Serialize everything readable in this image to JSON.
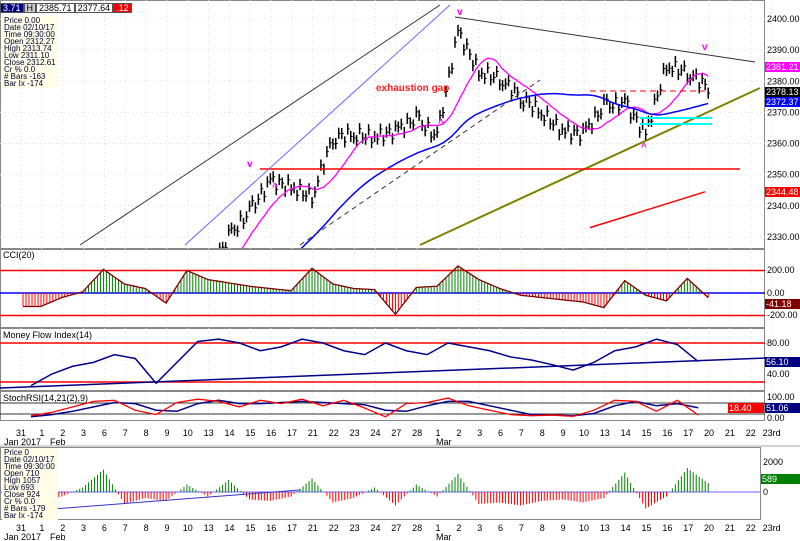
{
  "header": {
    "box1": "3.71",
    "h_label": "H",
    "high": "2385.71",
    "last": "2377.64",
    "change": ".12"
  },
  "info_price": {
    "rows": [
      "Price  0.00",
      "Date  02/10/17",
      "Time  09:30:00",
      "Open  2312.27",
      "High  2313.74",
      "Low  2311.10",
      "Close  2312.61",
      "Cr %  0.0",
      "# Bars -163",
      "Bar Ix -174"
    ]
  },
  "info_volume": {
    "rows": [
      "Price  0",
      "Date  02/10/17",
      "Time  09:30:00",
      "Open  710",
      "High  1057",
      "Low  693",
      "Close  924",
      "Cr %  0.0",
      "# Bars -179",
      "Bar Ix -174"
    ]
  },
  "tags": {
    "ma_fast": "2381.21",
    "close": "2378.13",
    "ma_slow": "2372.37",
    "ma_red": "2344.48",
    "cci": "-41.18",
    "mfi": "56.10",
    "stoch_d": "51.06",
    "stoch_k": "18.40",
    "volume": "589"
  },
  "colors": {
    "ma_fast": "#ff00ff",
    "ma_slow": "#0000ff",
    "ma_red": "#ff0000",
    "up": "#008000",
    "down": "#ff0000",
    "trend": "#808000",
    "cyan": "#00ffff"
  },
  "chart_data": [
    {
      "type": "bar",
      "title": "",
      "panel": "price",
      "y_ticks": [
        "2400.00",
        "2390.00",
        "2380.00",
        "2370.00",
        "2360.00",
        "2350.00",
        "2340.00",
        "2330.00"
      ],
      "ylim": [
        2328,
        2405
      ],
      "dates": [
        "31",
        "1",
        "2",
        "3",
        "6",
        "7",
        "8",
        "9",
        "10",
        "13",
        "14",
        "15",
        "16",
        "17",
        "21",
        "22",
        "23",
        "24",
        "27",
        "28",
        "1",
        "2",
        "3",
        "6",
        "7",
        "8",
        "9",
        "10",
        "13",
        "14",
        "15",
        "16",
        "17"
      ],
      "closes": [
        2270,
        2275,
        2278,
        2295,
        2292,
        2294,
        2298,
        2308,
        2318,
        2330,
        2338,
        2348,
        2346,
        2343,
        2362,
        2363,
        2362,
        2364,
        2368,
        2362,
        2396,
        2383,
        2381,
        2375,
        2370,
        2364,
        2363,
        2372,
        2373,
        2363,
        2385,
        2383,
        2378
      ],
      "annotations": [
        {
          "text": "exhaustion gap"
        },
        {
          "text": "v"
        },
        {
          "text": "^"
        }
      ]
    },
    {
      "type": "bar",
      "panel": "cci",
      "title": "CCI(20)",
      "y_ticks": [
        "200.00",
        "0.00",
        "-200.00"
      ],
      "values": [
        -120,
        -40,
        10,
        210,
        80,
        40,
        -90,
        200,
        120,
        90,
        60,
        40,
        20,
        220,
        80,
        40,
        30,
        -190,
        50,
        60,
        240,
        120,
        40,
        -20,
        -40,
        -60,
        -80,
        -130,
        110,
        -20,
        -70,
        130,
        -41
      ]
    },
    {
      "type": "line",
      "panel": "mfi",
      "title": "Money Flow Index(14)",
      "y_ticks": [
        "80.00",
        "40.00"
      ],
      "values": [
        25,
        40,
        50,
        55,
        65,
        60,
        28,
        55,
        82,
        85,
        80,
        70,
        75,
        85,
        80,
        70,
        65,
        80,
        70,
        65,
        80,
        75,
        70,
        62,
        58,
        52,
        45,
        55,
        70,
        75,
        85,
        78,
        56
      ]
    },
    {
      "type": "line",
      "panel": "stochrsi",
      "title": "StochRSI(14,21(2),9)",
      "y_ticks": [
        "100.00",
        "0.00"
      ],
      "k": [
        15,
        30,
        55,
        80,
        85,
        40,
        20,
        75,
        90,
        80,
        55,
        85,
        70,
        90,
        60,
        85,
        50,
        10,
        70,
        75,
        95,
        60,
        40,
        20,
        15,
        18,
        12,
        40,
        85,
        80,
        35,
        85,
        18
      ],
      "d": [
        10,
        20,
        35,
        55,
        75,
        70,
        40,
        35,
        70,
        85,
        70,
        70,
        75,
        80,
        75,
        70,
        65,
        40,
        35,
        60,
        80,
        80,
        60,
        40,
        20,
        18,
        15,
        25,
        60,
        80,
        60,
        70,
        51
      ]
    },
    {
      "type": "bar",
      "panel": "volume",
      "y_ticks": [
        "2000",
        "0"
      ],
      "values": [
        -600,
        -300,
        300,
        1500,
        -800,
        -400,
        -600,
        500,
        -300,
        800,
        -500,
        -600,
        -300,
        900,
        -700,
        -400,
        300,
        -900,
        500,
        -300,
        1200,
        -800,
        -700,
        -900,
        -600,
        -500,
        -700,
        -400,
        1300,
        -1100,
        -300,
        1600,
        589
      ]
    }
  ],
  "x_axis": {
    "dates": [
      "31",
      "1",
      "2",
      "3",
      "6",
      "7",
      "8",
      "9",
      "10",
      "13",
      "14",
      "15",
      "16",
      "17",
      "21",
      "22",
      "23",
      "24",
      "27",
      "28",
      "1",
      "2",
      "3",
      "6",
      "7",
      "8",
      "9",
      "10",
      "13",
      "14",
      "15",
      "16",
      "17",
      "20",
      "21",
      "22",
      "23rd"
    ],
    "month_jan": "Jan 2017",
    "month_feb": "Feb",
    "month_mar": "Mar"
  }
}
